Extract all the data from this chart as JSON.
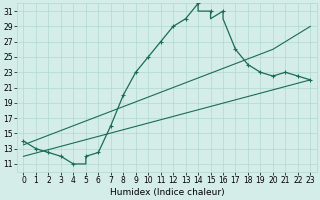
{
  "xlabel": "Humidex (Indice chaleur)",
  "bg_color": "#d5ede8",
  "grid_color": "#b0d8d0",
  "line_color": "#1a6b5a",
  "xlim": [
    -0.5,
    23.5
  ],
  "ylim": [
    10,
    32
  ],
  "xticks": [
    0,
    1,
    2,
    3,
    4,
    5,
    6,
    7,
    8,
    9,
    10,
    11,
    12,
    13,
    14,
    15,
    16,
    17,
    18,
    19,
    20,
    21,
    22,
    23
  ],
  "yticks": [
    11,
    13,
    15,
    17,
    19,
    21,
    23,
    25,
    27,
    29,
    31
  ],
  "main_curve_x": [
    0,
    1,
    2,
    3,
    4,
    5,
    5,
    6,
    7,
    8,
    9,
    10,
    11,
    12,
    13,
    14,
    14,
    15,
    15,
    16,
    16,
    17,
    18,
    19,
    20,
    21,
    22,
    23
  ],
  "main_curve_y": [
    14,
    13,
    12.5,
    12,
    11,
    11,
    12,
    12.5,
    16,
    20,
    23,
    25,
    27,
    29,
    30,
    32,
    31,
    31,
    30,
    31,
    30,
    26,
    24,
    23,
    22.5,
    23,
    22.5,
    22
  ],
  "line1_x": [
    0,
    20,
    23
  ],
  "line1_y": [
    13.5,
    26,
    29
  ],
  "line2_x": [
    0,
    23
  ],
  "line2_y": [
    12,
    22
  ],
  "marker_x": [
    0,
    1,
    2,
    3,
    4,
    5,
    6,
    7,
    8,
    9,
    10,
    11,
    12,
    13,
    14,
    15,
    16,
    17,
    18,
    19,
    20,
    21,
    22,
    23
  ],
  "marker_y": [
    14,
    13,
    12.5,
    12,
    11,
    12,
    12.5,
    16,
    20,
    23,
    25,
    27,
    29,
    30,
    32,
    31,
    31,
    26,
    24,
    23,
    22.5,
    23,
    22.5,
    22
  ],
  "xlabel_fontsize": 6.5,
  "tick_fontsize": 5.5
}
